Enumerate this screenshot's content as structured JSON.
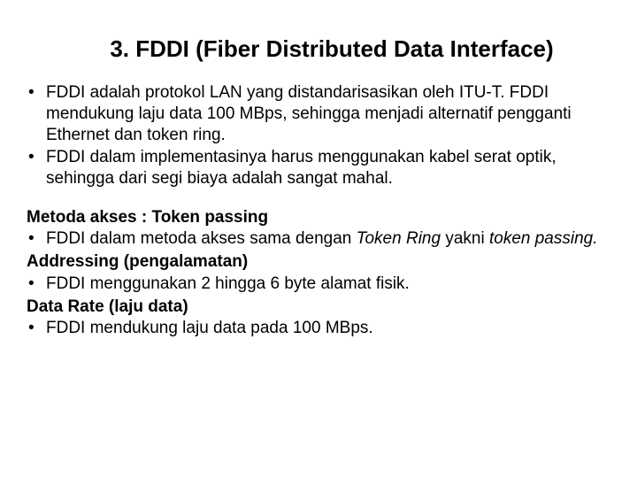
{
  "title": "3. FDDI (Fiber Distributed Data Interface)",
  "intro": {
    "b1": "FDDI adalah protokol LAN yang distandarisasikan oleh ITU-T. FDDI mendukung laju data 100 MBps, sehingga menjadi alternatif pengganti Ethernet dan token ring.",
    "b2": "FDDI dalam implementasinya harus menggunakan kabel serat optik, sehingga dari segi biaya adalah sangat mahal."
  },
  "sec1": {
    "label": "Metoda akses : Token passing",
    "b1a": "FDDI dalam metoda akses sama dengan ",
    "b1b": "Token Ring",
    "b1c": " yakni ",
    "b1d": "token passing."
  },
  "sec2": {
    "label": "Addressing (pengalamatan)",
    "b1": "FDDI menggunakan 2 hingga 6 byte alamat fisik."
  },
  "sec3": {
    "label": "Data Rate (laju data)",
    "b1": "FDDI mendukung laju data pada 100 MBps."
  },
  "bullet": "•"
}
